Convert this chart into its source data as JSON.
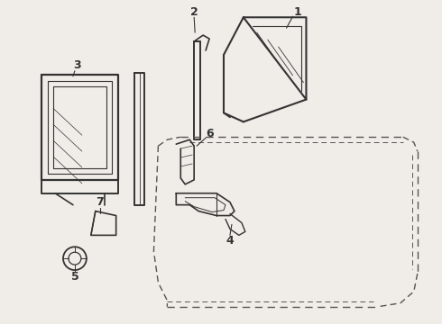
{
  "bg_color": "#f0ede8",
  "line_color": "#333333",
  "dashed_color": "#555555",
  "label_fs": 9,
  "lw_main": 1.4,
  "lw_inner": 0.8,
  "lw_dash": 1.0
}
